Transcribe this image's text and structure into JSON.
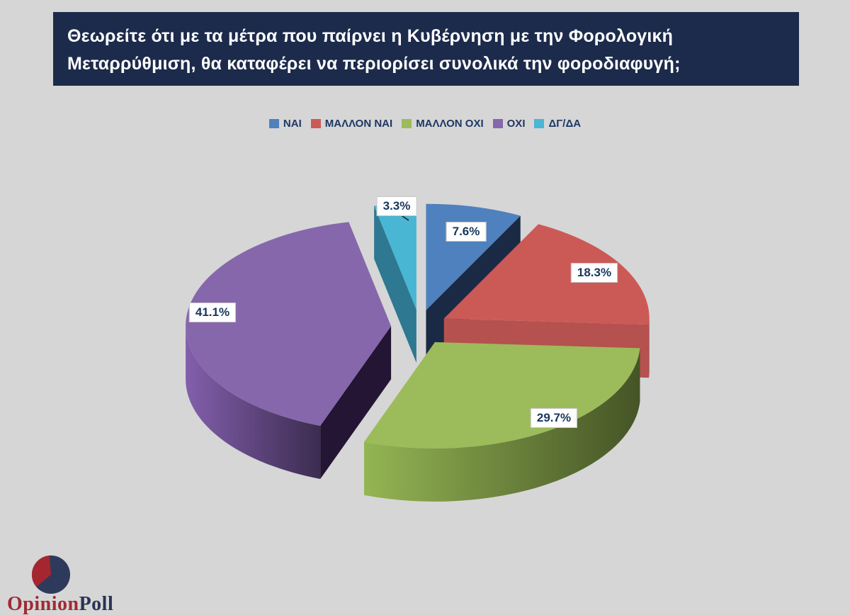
{
  "header": {
    "question_lines": [
      "Θεωρείτε ότι με τα μέτρα που παίρνει η Κυβέρνηση με την Φορολογική",
      "Μεταρρύθμιση, θα καταφέρει να περιορίσει συνολικά την φοροδιαφυγή;"
    ]
  },
  "chart_data": {
    "type": "pie",
    "style": "3d-exploded",
    "title": "Θεωρείτε ότι με τα μέτρα που παίρνει η Κυβέρνηση με την Φορολογική Μεταρρύθμιση, θα καταφέρει να περιορίσει συνολικά την φοροδιαφυγή;",
    "start_angle_deg": 0,
    "direction": "clockwise",
    "legend_position": "top-center",
    "slices": [
      {
        "label": "ΝΑΙ",
        "value": 7.6,
        "display": "7.6%",
        "color": "#4E81BD",
        "wall_color": "#2E4E78",
        "edge_color": "#1B2A44"
      },
      {
        "label": "ΜΑΛΛΟΝ ΝΑΙ",
        "value": 18.3,
        "display": "18.3%",
        "color": "#CB5A56",
        "wall_color": "#B5514E",
        "edge_color": "#B5514E"
      },
      {
        "label": "ΜΑΛΛΟΝ ΟΧΙ",
        "value": 29.7,
        "display": "29.7%",
        "color": "#9CBB5B",
        "wall_color": "#84A24A",
        "edge_color": "#6F8A3C"
      },
      {
        "label": "ΟΧΙ",
        "value": 41.1,
        "display": "41.1%",
        "color": "#8667AC",
        "wall_color": "#74559A",
        "edge_color": "#231533"
      },
      {
        "label": "ΔΓ/ΔΑ",
        "value": 3.3,
        "display": "3.3%",
        "color": "#49B6D4",
        "wall_color": "#2E7891",
        "edge_color": "#2E7891"
      }
    ]
  },
  "logo": {
    "brand_first": "Opinion",
    "brand_second": "Poll"
  },
  "colors": {
    "background": "#D6D6D6",
    "banner_background": "#1C2B4B",
    "banner_text": "#FFFFFF",
    "legend_text": "#1F3864",
    "data_label_text": "#17365D",
    "logo_red": "#A6262F",
    "logo_navy": "#2E3A5C"
  }
}
